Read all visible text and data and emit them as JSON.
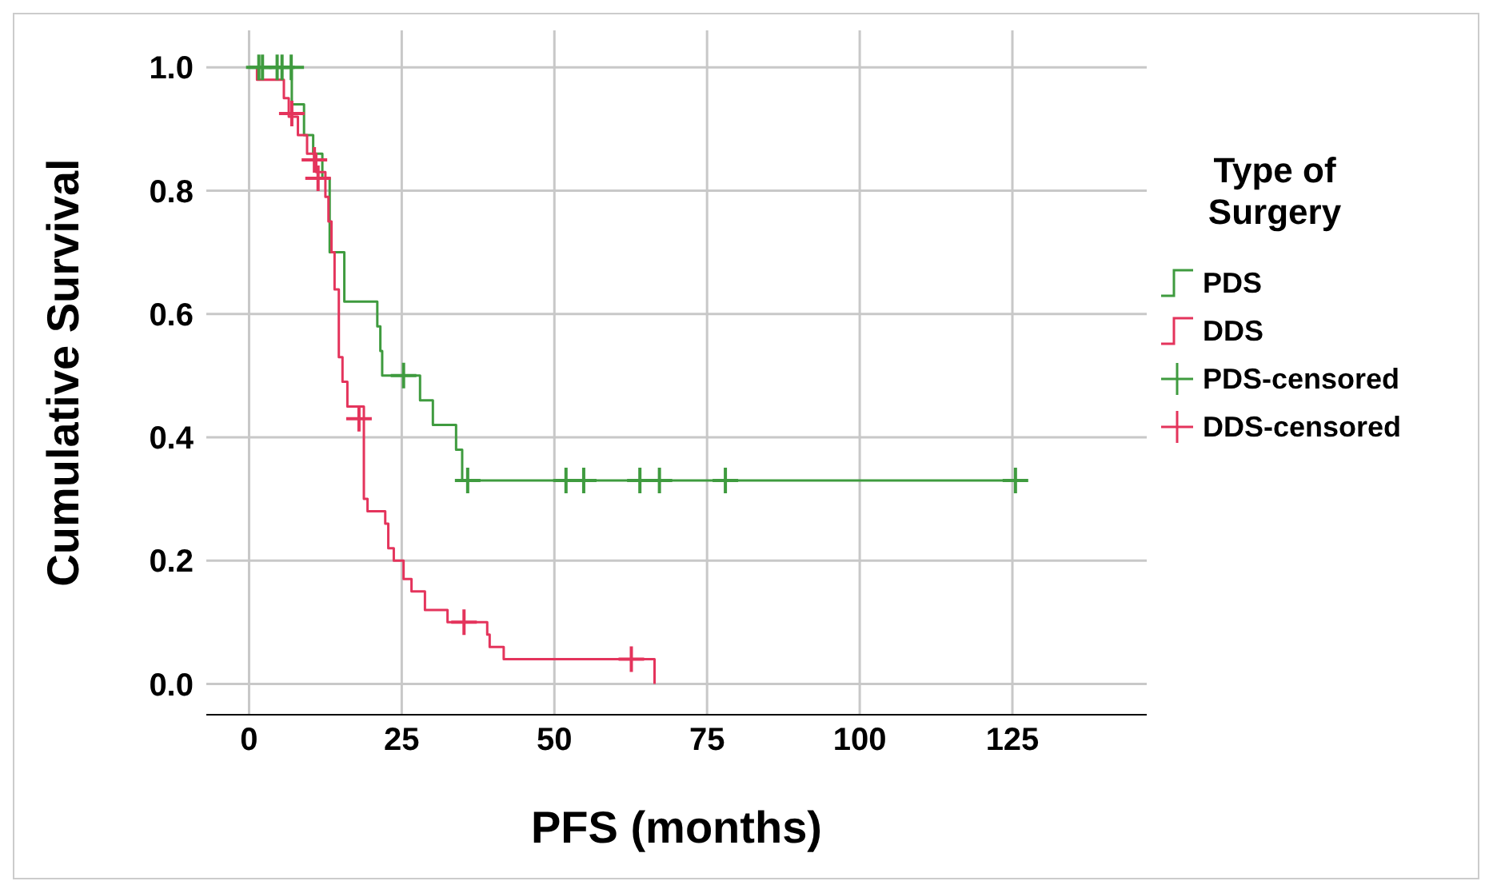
{
  "chart_data": {
    "type": "step",
    "xlabel": "PFS (months)",
    "ylabel": "Cumulative Survival",
    "legend_title": "Type of Surgery",
    "xlim": [
      -7,
      147
    ],
    "xticks": [
      0,
      25,
      50,
      75,
      100,
      125
    ],
    "ylim": [
      -0.05,
      1.06
    ],
    "yticks": [
      {
        "value": 0,
        "label": "0.0"
      },
      {
        "value": 0.2,
        "label": "0.2"
      },
      {
        "value": 0.4,
        "label": "0.4"
      },
      {
        "value": 0.6,
        "label": "0.6"
      },
      {
        "value": 0.8,
        "label": "0.8"
      },
      {
        "value": 1,
        "label": "1.0"
      }
    ],
    "grid": true,
    "legend": "right",
    "line_style": "solid",
    "series": [
      {
        "name": "PDS",
        "type": "step",
        "color": "#3f9b3f",
        "marker": "none",
        "x": [
          0,
          7,
          9,
          10.5,
          12,
          13.2,
          15.6,
          21,
          21.5,
          21.8,
          28,
          30.1,
          33.9,
          34.9,
          125.5
        ],
        "values": [
          1,
          0.94,
          0.89,
          0.86,
          0.82,
          0.7,
          0.62,
          0.58,
          0.54,
          0.5,
          0.46,
          0.42,
          0.38,
          0.33,
          0.33
        ]
      },
      {
        "name": "DDS",
        "type": "step",
        "color": "#e4345c",
        "marker": "none",
        "x": [
          0,
          1.3,
          5.7,
          6.5,
          8,
          9.5,
          11,
          12.5,
          13,
          13.5,
          14,
          14.7,
          15.3,
          16.1,
          18.8,
          19.4,
          22.3,
          22.8,
          23.7,
          25.3,
          26.6,
          28.8,
          32.5,
          39,
          39.4,
          41.7,
          66.4,
          66.4
        ],
        "values": [
          1,
          0.98,
          0.95,
          0.92,
          0.89,
          0.86,
          0.83,
          0.79,
          0.75,
          0.7,
          0.64,
          0.53,
          0.49,
          0.45,
          0.3,
          0.28,
          0.26,
          0.22,
          0.2,
          0.17,
          0.15,
          0.12,
          0.1,
          0.08,
          0.06,
          0.04,
          0.04,
          0
        ]
      },
      {
        "name": "PDS-censored",
        "type": "scatter",
        "color": "#3f9b3f",
        "marker": "cross",
        "x": [
          1.6,
          2.2,
          4.6,
          5.4,
          6.9,
          25.3,
          35.8,
          51.9,
          54.8,
          64,
          67.2,
          78,
          125.5
        ],
        "values": [
          1,
          1,
          1,
          1,
          1,
          0.5,
          0.33,
          0.33,
          0.33,
          0.33,
          0.33,
          0.33,
          0.33
        ]
      },
      {
        "name": "DDS-censored",
        "type": "scatter",
        "color": "#e4345c",
        "marker": "cross",
        "x": [
          7,
          10.7,
          11.3,
          18,
          35.2,
          62.6
        ],
        "values": [
          0.925,
          0.85,
          0.82,
          0.43,
          0.1,
          0.04
        ]
      }
    ]
  }
}
